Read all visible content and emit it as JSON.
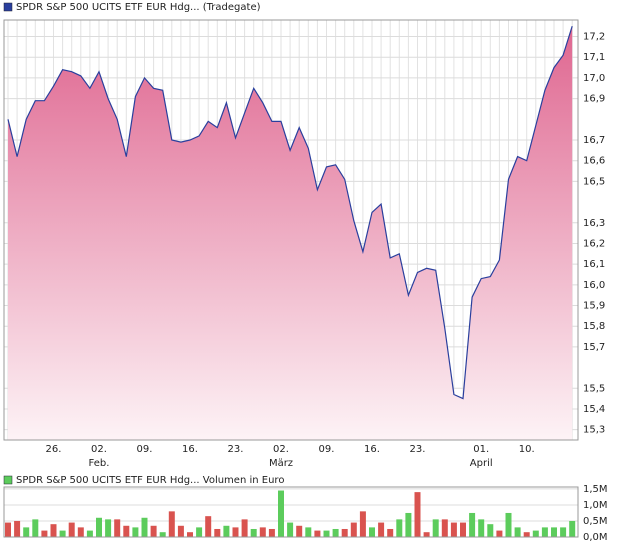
{
  "chart_data": [
    {
      "type": "area",
      "categories": [
        null,
        null,
        null,
        null,
        null,
        "26.",
        null,
        null,
        null,
        null,
        "02.",
        null,
        null,
        null,
        null,
        "09.",
        null,
        null,
        null,
        null,
        "16.",
        null,
        null,
        null,
        null,
        "23.",
        null,
        null,
        null,
        null,
        "02.",
        null,
        null,
        null,
        null,
        "09.",
        null,
        null,
        null,
        null,
        "16.",
        null,
        null,
        null,
        null,
        "23.",
        null,
        null,
        null,
        null,
        null,
        null,
        "01.",
        null,
        null,
        null,
        null,
        "10.",
        null,
        null,
        null,
        null,
        null
      ],
      "month_categories": [
        null,
        null,
        null,
        null,
        null,
        null,
        null,
        null,
        null,
        null,
        "Feb.",
        null,
        null,
        null,
        null,
        null,
        null,
        null,
        null,
        null,
        null,
        null,
        null,
        null,
        null,
        null,
        null,
        null,
        null,
        null,
        "März",
        null,
        null,
        null,
        null,
        null,
        null,
        null,
        null,
        null,
        null,
        null,
        null,
        null,
        null,
        null,
        null,
        null,
        null,
        null,
        null,
        null,
        "April",
        null,
        null,
        null,
        null,
        null,
        null,
        null,
        null,
        null,
        null
      ],
      "series": [
        {
          "name": "SPDR S&P 500 UCITS ETF EUR Hdg... (Tradegate)",
          "color": "#2a3f9d",
          "values": [
            16.8,
            16.62,
            16.8,
            16.89,
            16.89,
            16.96,
            17.04,
            17.03,
            17.01,
            16.95,
            17.03,
            16.9,
            16.8,
            16.62,
            16.91,
            17.0,
            16.95,
            16.94,
            16.7,
            16.69,
            16.7,
            16.72,
            16.79,
            16.76,
            16.88,
            16.71,
            16.83,
            16.95,
            16.88,
            16.79,
            16.79,
            16.65,
            16.76,
            16.66,
            16.46,
            16.57,
            16.58,
            16.51,
            16.31,
            16.16,
            16.35,
            16.39,
            16.13,
            16.15,
            15.95,
            16.06,
            16.08,
            16.07,
            15.79,
            15.47,
            15.45,
            15.94,
            16.03,
            16.04,
            16.12,
            16.51,
            16.62,
            16.6,
            16.77,
            16.94,
            17.05,
            17.11,
            17.25
          ]
        }
      ],
      "ylim": [
        15.25,
        17.28
      ],
      "yticks": [
        {
          "value": 17.2,
          "label": "17,2"
        },
        {
          "value": 17.1,
          "label": "17,1"
        },
        {
          "value": 17.0,
          "label": "17,0"
        },
        {
          "value": 16.9,
          "label": "16,9"
        },
        {
          "value": 16.7,
          "label": "16,7"
        },
        {
          "value": 16.6,
          "label": "16,6"
        },
        {
          "value": 16.5,
          "label": "16,5"
        },
        {
          "value": 16.3,
          "label": "16,3"
        },
        {
          "value": 16.2,
          "label": "16,2"
        },
        {
          "value": 16.1,
          "label": "16,1"
        },
        {
          "value": 16.0,
          "label": "16,0"
        },
        {
          "value": 15.9,
          "label": "15,9"
        },
        {
          "value": 15.8,
          "label": "15,8"
        },
        {
          "value": 15.7,
          "label": "15,7"
        },
        {
          "value": 15.5,
          "label": "15,5"
        },
        {
          "value": 15.4,
          "label": "15,4"
        },
        {
          "value": 15.3,
          "label": "15,3"
        }
      ],
      "grid": true
    },
    {
      "type": "bar",
      "series": [
        {
          "name": "SPDR S&P 500 UCITS ETF EUR Hdg... Volumen in Euro",
          "color": "#5ccc5c",
          "values": [
            450000,
            500000,
            300000,
            550000,
            200000,
            400000,
            200000,
            450000,
            300000,
            200000,
            600000,
            550000,
            550000,
            350000,
            300000,
            600000,
            350000,
            150000,
            800000,
            350000,
            150000,
            300000,
            650000,
            250000,
            350000,
            300000,
            550000,
            250000,
            300000,
            250000,
            1450000,
            450000,
            350000,
            300000,
            200000,
            200000,
            250000,
            250000,
            450000,
            800000,
            300000,
            450000,
            250000,
            550000,
            750000,
            1400000,
            150000,
            550000,
            550000,
            450000,
            450000,
            750000,
            550000,
            400000,
            200000,
            750000,
            300000,
            150000,
            200000,
            300000,
            300000,
            300000,
            500000
          ],
          "bar_colors": [
            "#d9534f",
            "#d9534f",
            "#5ccc5c",
            "#5ccc5c",
            "#d9534f",
            "#d9534f",
            "#5ccc5c",
            "#d9534f",
            "#d9534f",
            "#5ccc5c",
            "#5ccc5c",
            "#5ccc5c",
            "#d9534f",
            "#d9534f",
            "#5ccc5c",
            "#5ccc5c",
            "#d9534f",
            "#5ccc5c",
            "#d9534f",
            "#d9534f",
            "#d9534f",
            "#5ccc5c",
            "#d9534f",
            "#d9534f",
            "#5ccc5c",
            "#d9534f",
            "#d9534f",
            "#5ccc5c",
            "#d9534f",
            "#d9534f",
            "#5ccc5c",
            "#5ccc5c",
            "#d9534f",
            "#5ccc5c",
            "#d9534f",
            "#5ccc5c",
            "#5ccc5c",
            "#d9534f",
            "#d9534f",
            "#d9534f",
            "#5ccc5c",
            "#d9534f",
            "#d9534f",
            "#5ccc5c",
            "#5ccc5c",
            "#d9534f",
            "#d9534f",
            "#5ccc5c",
            "#d9534f",
            "#d9534f",
            "#d9534f",
            "#5ccc5c",
            "#5ccc5c",
            "#5ccc5c",
            "#d9534f",
            "#5ccc5c",
            "#5ccc5c",
            "#d9534f",
            "#5ccc5c",
            "#5ccc5c",
            "#5ccc5c",
            "#5ccc5c",
            "#5ccc5c"
          ]
        }
      ],
      "ylim": [
        0,
        1560000
      ],
      "yticks": [
        {
          "value": 1500000,
          "label": "1,5M"
        },
        {
          "value": 1000000,
          "label": "1,0M"
        },
        {
          "value": 500000,
          "label": "0,5M"
        },
        {
          "value": 0,
          "label": "0,0M"
        }
      ],
      "grid": true
    }
  ]
}
